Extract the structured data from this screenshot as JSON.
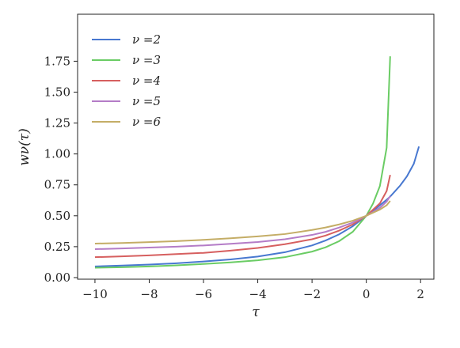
{
  "chart_data": {
    "type": "line",
    "x_label": "τ",
    "y_label": "wν(τ)",
    "x": [
      -10,
      -9,
      -8,
      -7,
      -6,
      -5,
      -4,
      -3,
      -2,
      -1.5,
      -1,
      -0.5,
      0,
      0.25,
      0.5,
      0.75,
      0.88,
      1.25,
      1.5,
      1.75,
      1.94
    ],
    "series": [
      {
        "name": "ν =2",
        "color": "#4878d0",
        "values": [
          0.09,
          0.097,
          0.105,
          0.116,
          0.13,
          0.147,
          0.17,
          0.205,
          0.26,
          0.3,
          0.35,
          0.415,
          0.5,
          0.54,
          0.585,
          0.63,
          0.655,
          0.745,
          0.82,
          0.92,
          1.06
        ]
      },
      {
        "name": "ν =3",
        "color": "#6acc64",
        "values": [
          0.08,
          0.084,
          0.09,
          0.099,
          0.11,
          0.123,
          0.14,
          0.165,
          0.21,
          0.245,
          0.295,
          0.37,
          0.5,
          0.6,
          0.74,
          1.05,
          1.79,
          null,
          null,
          null,
          null
        ]
      },
      {
        "name": "ν =4",
        "color": "#d65f5f",
        "values": [
          0.165,
          0.172,
          0.18,
          0.19,
          0.2,
          0.218,
          0.24,
          0.27,
          0.31,
          0.34,
          0.38,
          0.43,
          0.5,
          0.55,
          0.6,
          0.7,
          0.83,
          null,
          null,
          null,
          null
        ]
      },
      {
        "name": "ν =5",
        "color": "#b47cc7",
        "values": [
          0.23,
          0.236,
          0.243,
          0.25,
          0.26,
          0.273,
          0.288,
          0.31,
          0.345,
          0.37,
          0.405,
          0.445,
          0.5,
          0.53,
          0.565,
          0.615,
          0.66,
          null,
          null,
          null,
          null
        ]
      },
      {
        "name": "ν =6",
        "color": "#c4ad66",
        "values": [
          0.275,
          0.28,
          0.287,
          0.295,
          0.305,
          0.318,
          0.333,
          0.352,
          0.385,
          0.405,
          0.43,
          0.46,
          0.5,
          0.525,
          0.55,
          0.585,
          0.62,
          null,
          null,
          null,
          null
        ]
      }
    ],
    "xlim": [
      -10.64,
      2.49
    ],
    "ylim": [
      -0.013,
      2.13
    ],
    "xticks": [
      {
        "value": -10,
        "label": "−10"
      },
      {
        "value": -8,
        "label": "−8"
      },
      {
        "value": -6,
        "label": "−6"
      },
      {
        "value": -4,
        "label": "−4"
      },
      {
        "value": -2,
        "label": "−2"
      },
      0,
      2
    ],
    "yticks": [
      {
        "value": 0,
        "label": "0.00"
      },
      {
        "value": 0.25,
        "label": "0.25"
      },
      {
        "value": 0.5,
        "label": "0.50"
      },
      {
        "value": 0.75,
        "label": "0.75"
      },
      {
        "value": 1,
        "label": "1.00"
      },
      {
        "value": 1.25,
        "label": "1.25"
      },
      {
        "value": 1.5,
        "label": "1.50"
      },
      {
        "value": 1.75,
        "label": "1.75"
      }
    ],
    "legend": "upper left",
    "grid": false
  }
}
